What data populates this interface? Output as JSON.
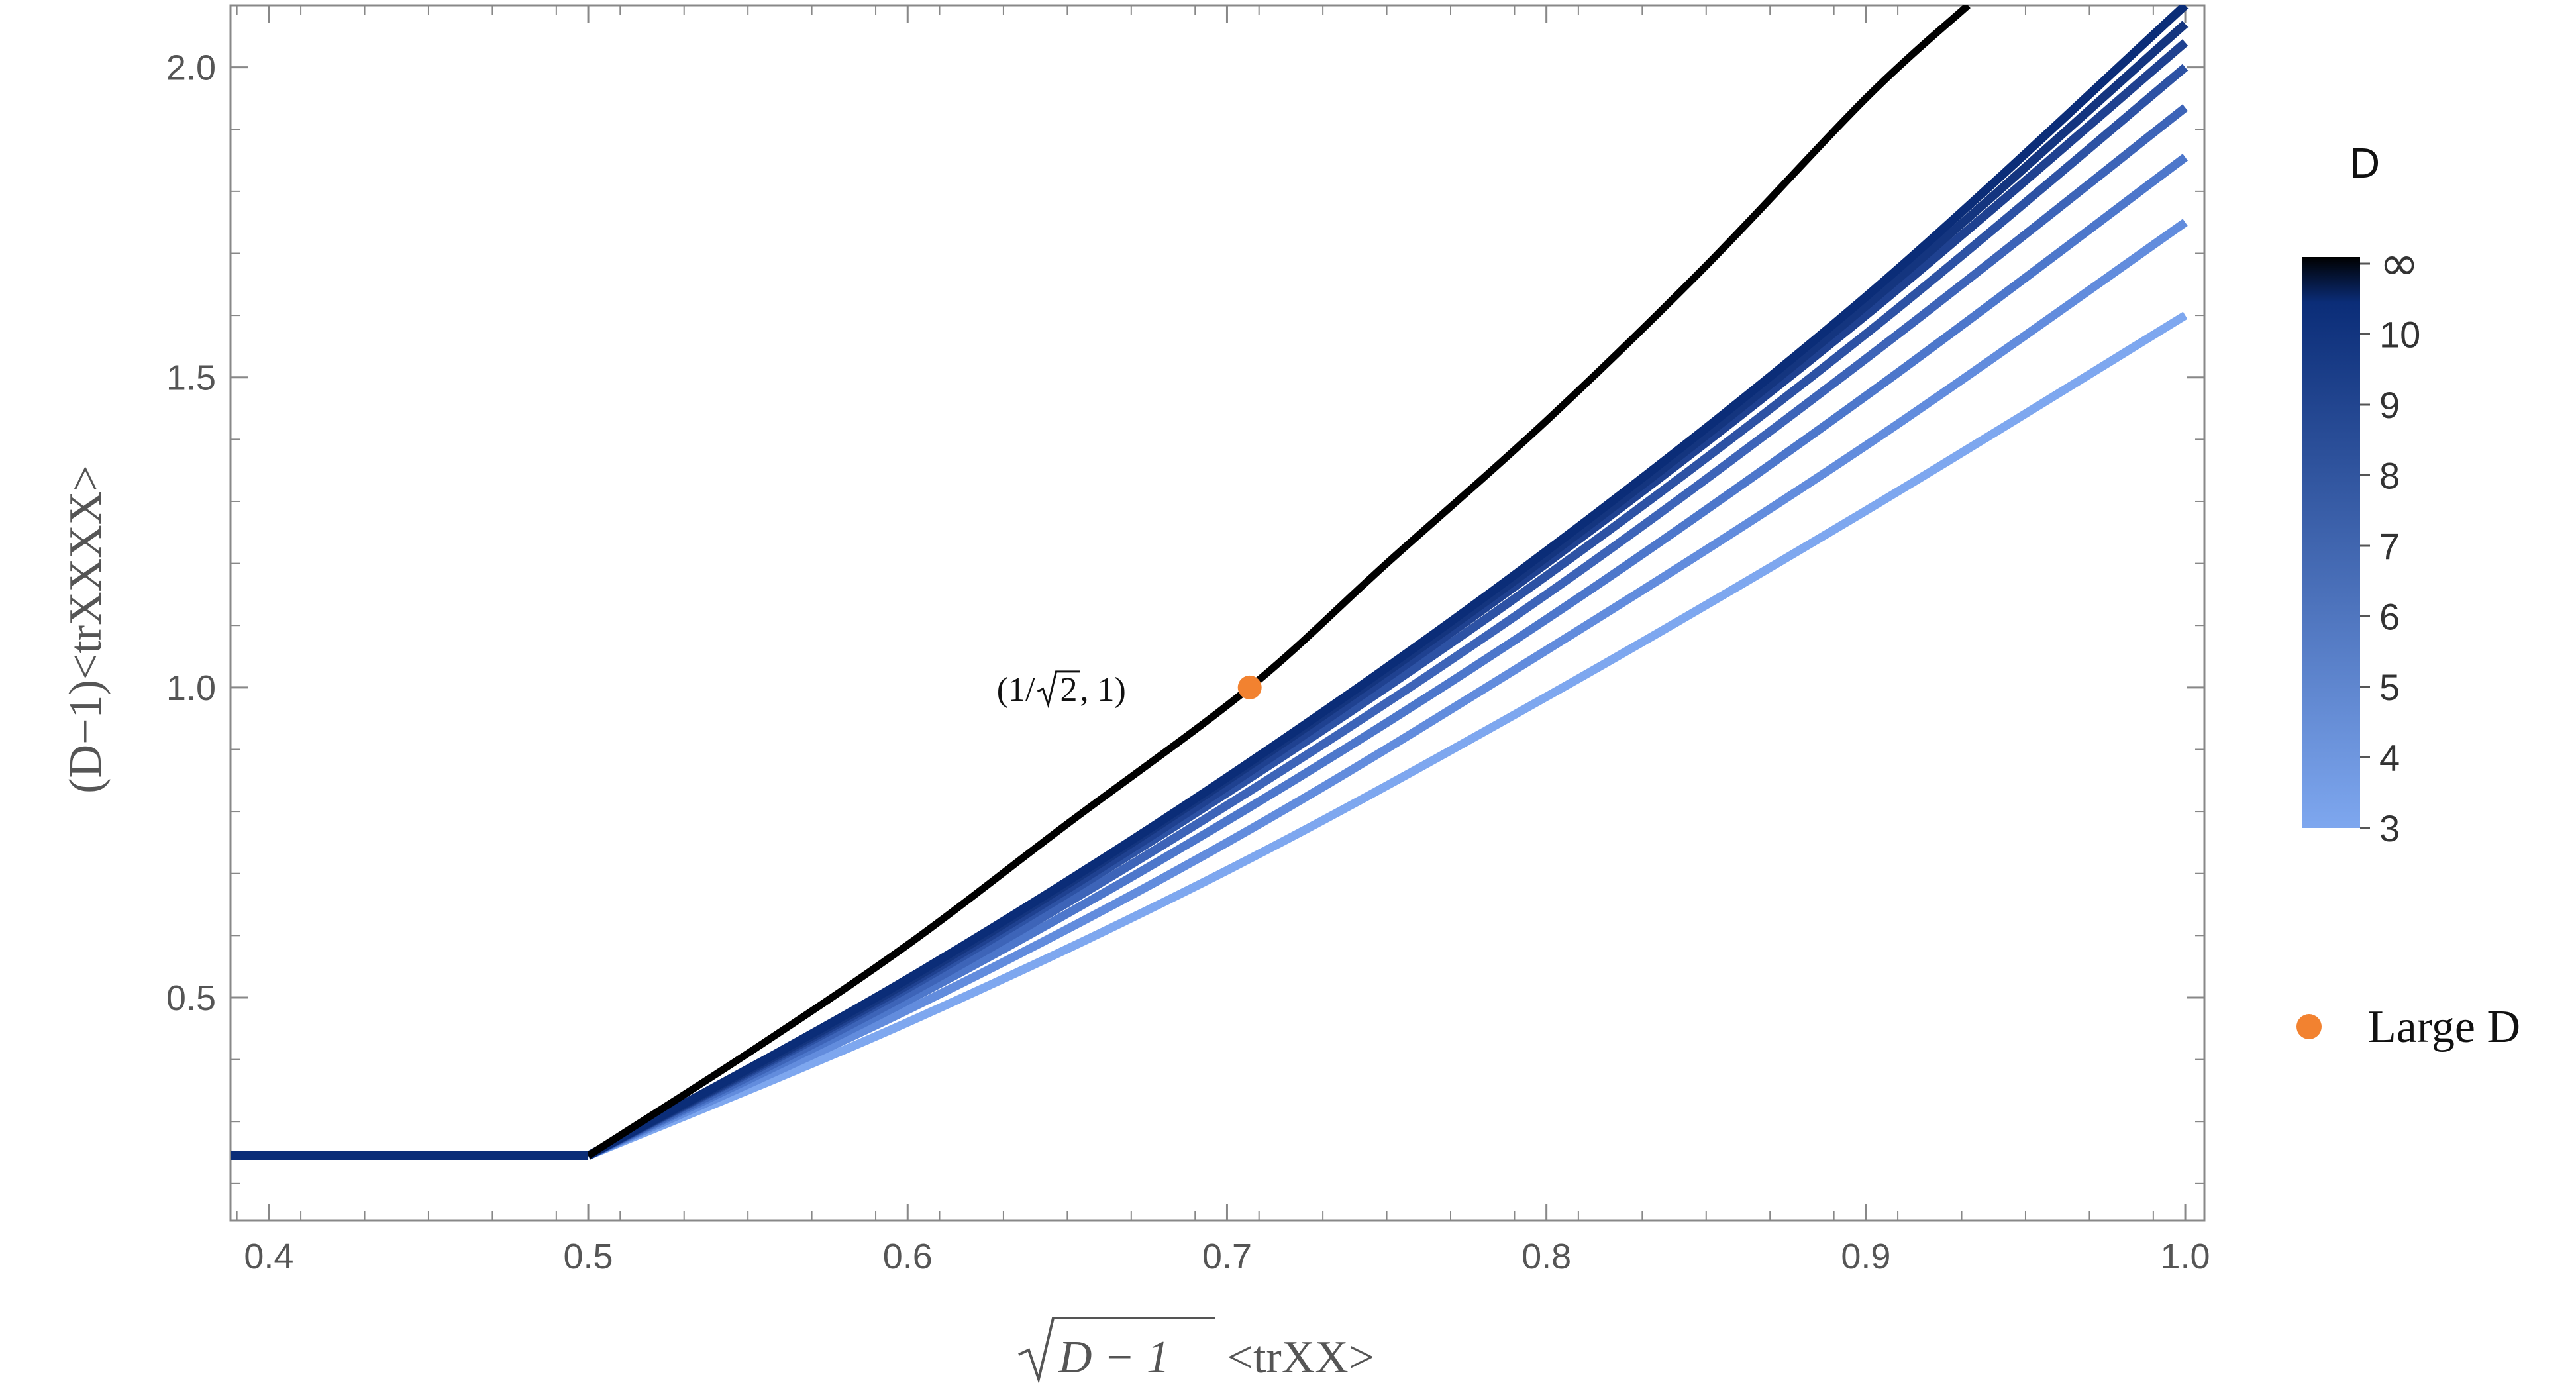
{
  "chart_data": {
    "type": "line",
    "xlabel_parts": {
      "sqrt_arg": "D − 1",
      "rest": " <trXX>"
    },
    "ylabel": "(D−1)<trXXXX>",
    "xlim": [
      0.388,
      1.006
    ],
    "ylim": [
      0.14,
      2.1
    ],
    "xticks": [
      "0.4",
      "0.5",
      "0.6",
      "0.7",
      "0.8",
      "0.9",
      "1.0"
    ],
    "xtick_values": [
      0.4,
      0.5,
      0.6,
      0.7,
      0.8,
      0.9,
      1.0
    ],
    "yticks": [
      "0.5",
      "1.0",
      "1.5",
      "2.0"
    ],
    "ytick_values": [
      0.5,
      1.0,
      1.5,
      2.0
    ],
    "plateau": {
      "x_start": 0.388,
      "x_end": 0.5,
      "y": 0.245
    },
    "series": [
      {
        "D": "∞",
        "x": [
          0.5,
          0.55,
          0.6,
          0.65,
          0.7071,
          0.75,
          0.8,
          0.85,
          0.9,
          0.932
        ],
        "y": [
          0.245,
          0.41,
          0.585,
          0.78,
          1.0,
          1.2,
          1.43,
          1.68,
          1.95,
          2.1
        ],
        "color": "#000000"
      },
      {
        "D": "10",
        "x": [
          0.5,
          0.6,
          0.7,
          0.8,
          0.9,
          1.0
        ],
        "y": [
          0.245,
          0.53,
          0.855,
          1.22,
          1.63,
          2.1
        ],
        "color": "#0b2d78"
      },
      {
        "D": "9",
        "x": [
          0.5,
          0.6,
          0.7,
          0.8,
          0.9,
          1.0
        ],
        "y": [
          0.245,
          0.525,
          0.85,
          1.21,
          1.615,
          2.07
        ],
        "color": "#14357f"
      },
      {
        "D": "8",
        "x": [
          0.5,
          0.6,
          0.7,
          0.8,
          0.9,
          1.0
        ],
        "y": [
          0.245,
          0.52,
          0.84,
          1.2,
          1.6,
          2.04
        ],
        "color": "#1f4190"
      },
      {
        "D": "7",
        "x": [
          0.5,
          0.6,
          0.7,
          0.8,
          0.9,
          1.0
        ],
        "y": [
          0.245,
          0.515,
          0.83,
          1.18,
          1.57,
          2.0
        ],
        "color": "#2d52a4"
      },
      {
        "D": "6",
        "x": [
          0.5,
          0.6,
          0.7,
          0.8,
          0.9,
          1.0
        ],
        "y": [
          0.245,
          0.505,
          0.81,
          1.15,
          1.53,
          1.935
        ],
        "color": "#3d64b8"
      },
      {
        "D": "5",
        "x": [
          0.5,
          0.6,
          0.7,
          0.8,
          0.9,
          1.0
        ],
        "y": [
          0.245,
          0.495,
          0.785,
          1.11,
          1.47,
          1.855
        ],
        "color": "#4d77cb"
      },
      {
        "D": "4",
        "x": [
          0.5,
          0.6,
          0.7,
          0.8,
          0.9,
          1.0
        ],
        "y": [
          0.245,
          0.48,
          0.75,
          1.06,
          1.39,
          1.75
        ],
        "color": "#628cdd"
      },
      {
        "D": "3",
        "x": [
          0.5,
          0.6,
          0.7,
          0.8,
          0.9,
          1.0
        ],
        "y": [
          0.245,
          0.46,
          0.705,
          0.985,
          1.285,
          1.6
        ],
        "color": "#7ea7ef"
      }
    ],
    "point": {
      "x": 0.7071,
      "y": 1.0,
      "color": "#f28230"
    },
    "annotation": {
      "prefix": "(1/",
      "sqrt_arg": "2",
      "suffix": ", 1)"
    },
    "colorbar": {
      "title": "D",
      "labels": [
        "∞",
        "10",
        "9",
        "8",
        "7",
        "6",
        "5",
        "4",
        "3"
      ],
      "color_top": "#000000",
      "color_mid": "#0b2d78",
      "color_bottom": "#7ea7ef"
    },
    "legend": {
      "label": "Large D",
      "marker_color": "#f28230"
    },
    "grid": false
  }
}
